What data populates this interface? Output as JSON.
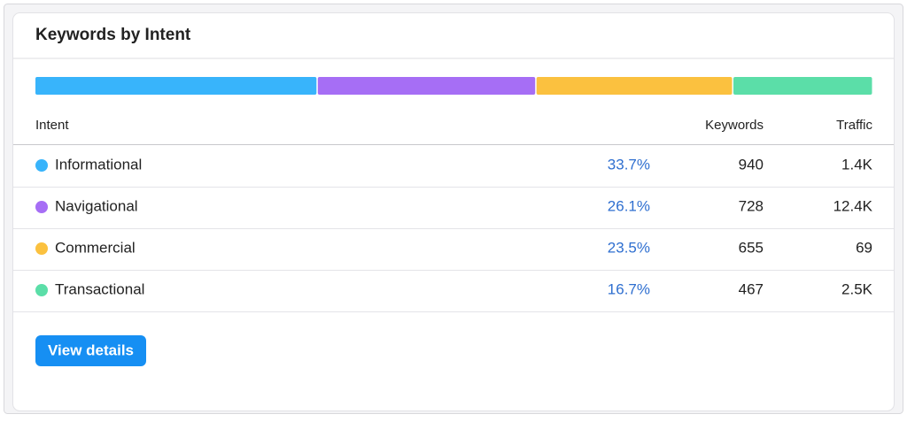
{
  "header": {
    "title": "Keywords by Intent"
  },
  "table": {
    "columns": [
      "Intent",
      "Keywords",
      "Traffic"
    ],
    "rows": [
      {
        "intent": "Informational",
        "color": "#38b4fb",
        "share": 33.7,
        "share_label": "33.7%",
        "keywords": 940,
        "traffic": "1.4K"
      },
      {
        "intent": "Navigational",
        "color": "#a66ef5",
        "share": 26.1,
        "share_label": "26.1%",
        "keywords": 728,
        "traffic": "12.4K"
      },
      {
        "intent": "Commercial",
        "color": "#fbc13f",
        "share": 23.5,
        "share_label": "23.5%",
        "keywords": 655,
        "traffic": "69"
      },
      {
        "intent": "Transactional",
        "color": "#5bdea8",
        "share": 16.7,
        "share_label": "16.7%",
        "keywords": 467,
        "traffic": "2.5K"
      }
    ]
  },
  "button": {
    "label": "View details"
  }
}
